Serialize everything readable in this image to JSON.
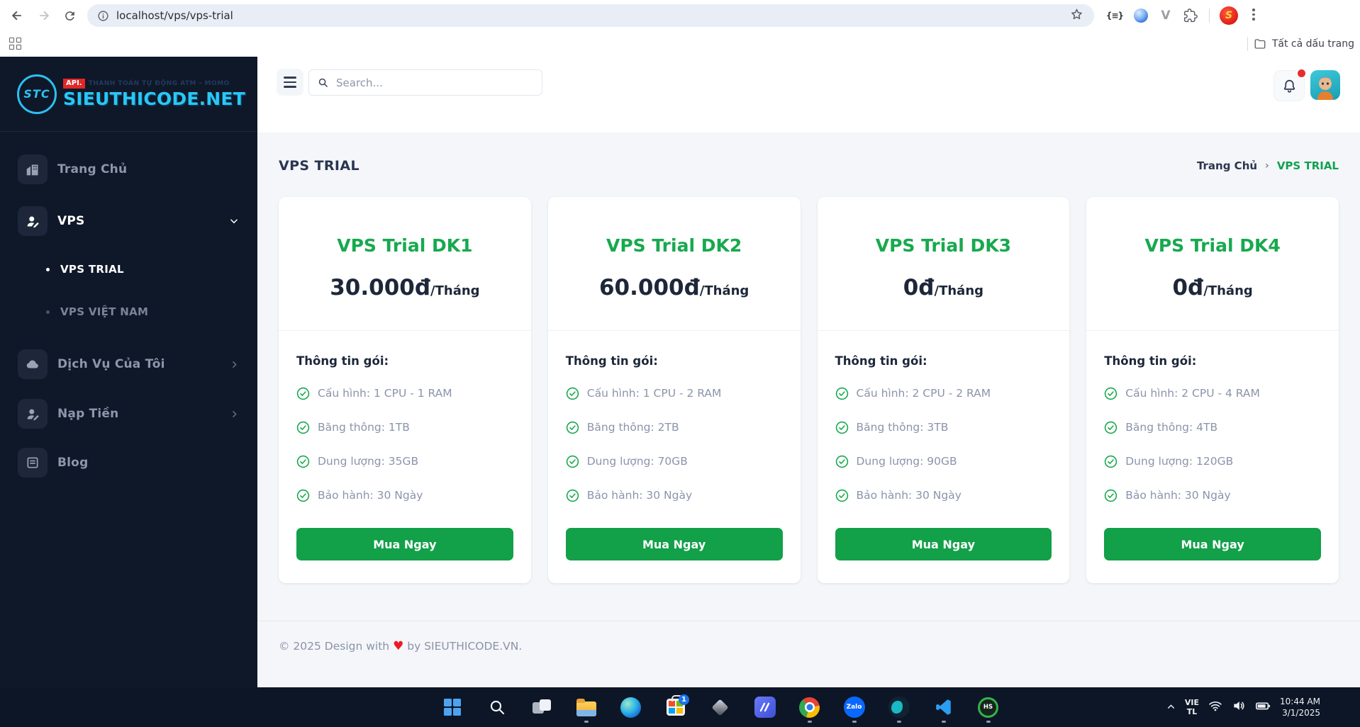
{
  "browser": {
    "url": "localhost/vps/vps-trial",
    "bookmarks_all_label": "Tất cả dấu trang"
  },
  "sidebar": {
    "emblem": "STC",
    "api_badge": "API.",
    "tagline": "THANH TOÁN TỰ ĐỘNG ATM - MOMO",
    "brand": "SIEUTHICODE.NET",
    "items": [
      {
        "label": "Trang Chủ"
      },
      {
        "label": "VPS"
      },
      {
        "label": "VPS TRIAL"
      },
      {
        "label": "VPS VIỆT NAM"
      },
      {
        "label": "Dịch Vụ Của Tôi"
      },
      {
        "label": "Nạp Tiền"
      },
      {
        "label": "Blog"
      }
    ]
  },
  "header": {
    "search_placeholder": "Search..."
  },
  "page": {
    "title": "VPS TRIAL",
    "breadcrumb_home": "Trang Chủ",
    "breadcrumb_sep": "›",
    "breadcrumb_current": "VPS TRIAL"
  },
  "cards": [
    {
      "name": "VPS Trial DK1",
      "price": "30.000đ",
      "period": "/Tháng",
      "info_title": "Thông tin gói:",
      "features": [
        "Cấu hình: 1 CPU - 1 RAM",
        "Băng thông: 1TB",
        "Dung lượng: 35GB",
        "Bảo hành: 30 Ngày"
      ],
      "button": "Mua Ngay"
    },
    {
      "name": "VPS Trial DK2",
      "price": "60.000đ",
      "period": "/Tháng",
      "info_title": "Thông tin gói:",
      "features": [
        "Cấu hình: 1 CPU - 2 RAM",
        "Băng thông: 2TB",
        "Dung lượng: 70GB",
        "Bảo hành: 30 Ngày"
      ],
      "button": "Mua Ngay"
    },
    {
      "name": "VPS Trial DK3",
      "price": "0đ",
      "period": "/Tháng",
      "info_title": "Thông tin gói:",
      "features": [
        "Cấu hình: 2 CPU - 2 RAM",
        "Băng thông: 3TB",
        "Dung lượng: 90GB",
        "Bảo hành: 30 Ngày"
      ],
      "button": "Mua Ngay"
    },
    {
      "name": "VPS Trial DK4",
      "price": "0đ",
      "period": "/Tháng",
      "info_title": "Thông tin gói:",
      "features": [
        "Cấu hình: 2 CPU - 4 RAM",
        "Băng thông: 4TB",
        "Dung lượng: 120GB",
        "Bảo hành: 30 Ngày"
      ],
      "button": "Mua Ngay"
    }
  ],
  "footer": {
    "prefix": "© 2025 Design with",
    "heart": "♥",
    "suffix": "by SIEUTHICODE.VN."
  },
  "taskbar": {
    "store_badge": "1",
    "zalo_label": "Zalo",
    "hs_label": "HS",
    "lang_line1": "VIE",
    "lang_line2": "TL",
    "time": "10:44 AM",
    "date": "3/1/2025"
  }
}
